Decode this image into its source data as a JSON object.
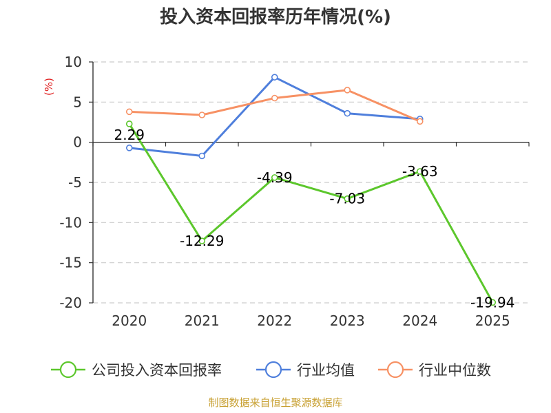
{
  "chart_data": {
    "type": "line",
    "title": "投入资本回报率历年情况(%)",
    "ylabel": "(%)",
    "xlabel": "",
    "categories": [
      "2020",
      "2021",
      "2022",
      "2023",
      "2024",
      "2025"
    ],
    "ylim": [
      -20,
      10
    ],
    "yticks": [
      10,
      5,
      0,
      -5,
      -10,
      -15,
      -20
    ],
    "grid": true,
    "legend_position": "bottom",
    "series": [
      {
        "name": "公司投入资本回报率",
        "color": "#5cc72c",
        "values": [
          2.29,
          -12.29,
          -4.39,
          -7.03,
          -3.63,
          -19.94
        ],
        "labels": [
          "2.29",
          "-12.29",
          "-4.39",
          "-7.03",
          "-3.63",
          "-19.94"
        ]
      },
      {
        "name": "行业均值",
        "color": "#4f7fdc",
        "values": [
          -0.7,
          -1.7,
          8.1,
          3.6,
          2.9,
          null
        ]
      },
      {
        "name": "行业中位数",
        "color": "#f79164",
        "values": [
          3.8,
          3.4,
          5.5,
          6.5,
          2.6,
          null
        ]
      }
    ]
  },
  "footer": {
    "source": "制图数据来自恒生聚源数据库"
  }
}
